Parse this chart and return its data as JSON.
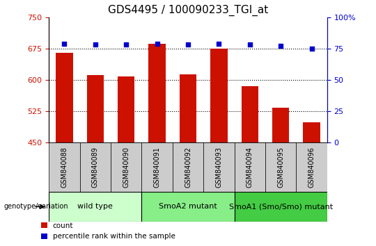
{
  "title": "GDS4495 / 100090233_TGI_at",
  "samples": [
    "GSM840088",
    "GSM840089",
    "GSM840090",
    "GSM840091",
    "GSM840092",
    "GSM840093",
    "GSM840094",
    "GSM840095",
    "GSM840096"
  ],
  "counts": [
    665,
    612,
    608,
    686,
    614,
    675,
    585,
    533,
    498
  ],
  "percentiles": [
    79,
    78,
    78,
    79,
    78,
    79,
    78,
    77,
    75
  ],
  "ylim_left": [
    450,
    750
  ],
  "ylim_right": [
    0,
    100
  ],
  "yticks_left": [
    450,
    525,
    600,
    675,
    750
  ],
  "yticks_right": [
    0,
    25,
    50,
    75,
    100
  ],
  "bar_color": "#cc1100",
  "dot_color": "#0000cc",
  "grid_color": "#000000",
  "sample_box_color": "#cccccc",
  "groups": [
    {
      "label": "wild type",
      "color": "#ccffcc",
      "start": 0,
      "end": 3
    },
    {
      "label": "SmoA2 mutant",
      "color": "#88ee88",
      "start": 3,
      "end": 6
    },
    {
      "label": "SmoA1 (Smo/Smo) mutant",
      "color": "#44cc44",
      "start": 6,
      "end": 9
    }
  ],
  "xlabel_genotype": "genotype/variation",
  "legend_count_label": "count",
  "legend_percentile_label": "percentile rank within the sample",
  "title_fontsize": 11,
  "tick_fontsize": 8,
  "sample_fontsize": 7,
  "group_fontsize": 8
}
